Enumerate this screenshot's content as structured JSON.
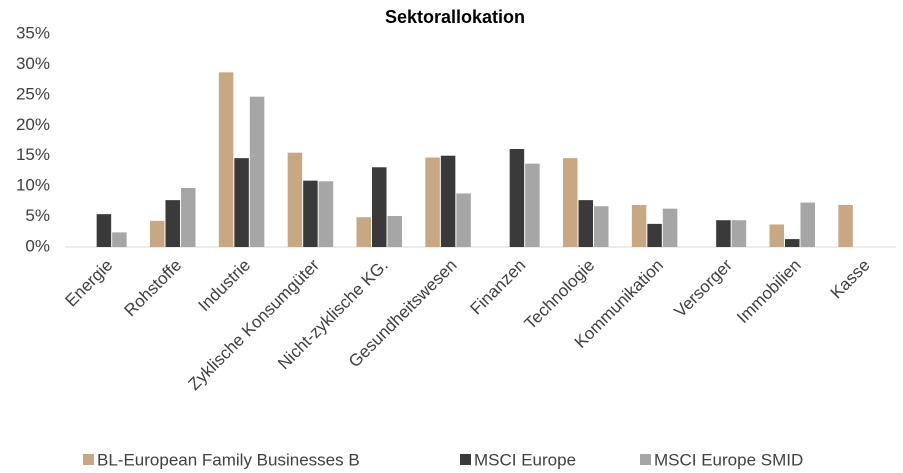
{
  "chart_data": {
    "type": "bar",
    "title": "Sektorallokation",
    "categories": [
      "Energie",
      "Rohstoffe",
      "Industrie",
      "Zyklische Konsumgüter",
      "Nicht-zyklische KG.",
      "Gesundheitswesen",
      "Finanzen",
      "Technologie",
      "Kommunikation",
      "Versorger",
      "Immobilien",
      "Kasse"
    ],
    "series": [
      {
        "name": "BL-European Family Businesses B",
        "color": "#c8a882",
        "values": [
          0,
          4.3,
          28.7,
          15.5,
          4.9,
          14.7,
          0,
          14.6,
          6.9,
          0,
          3.7,
          6.9
        ]
      },
      {
        "name": "MSCI Europe",
        "color": "#3a3a3a",
        "values": [
          5.4,
          7.7,
          14.6,
          10.9,
          13.1,
          15.0,
          16.1,
          7.7,
          3.8,
          4.4,
          1.3,
          0
        ]
      },
      {
        "name": "MSCI Europe SMID",
        "color": "#a6a6a6",
        "values": [
          2.4,
          9.7,
          24.7,
          10.8,
          5.1,
          8.8,
          13.7,
          6.7,
          6.3,
          4.4,
          7.3,
          0
        ]
      }
    ],
    "ylim": [
      0,
      35
    ],
    "yticks": [
      {
        "value": 0,
        "label": "0%"
      },
      {
        "value": 5,
        "label": "5%"
      },
      {
        "value": 10,
        "label": "10%"
      },
      {
        "value": 15,
        "label": "15%"
      },
      {
        "value": 20,
        "label": "20%"
      },
      {
        "value": 25,
        "label": "25%"
      },
      {
        "value": 30,
        "label": "30%"
      },
      {
        "value": 35,
        "label": "35%"
      }
    ],
    "grid": false,
    "legend": "bottom"
  }
}
